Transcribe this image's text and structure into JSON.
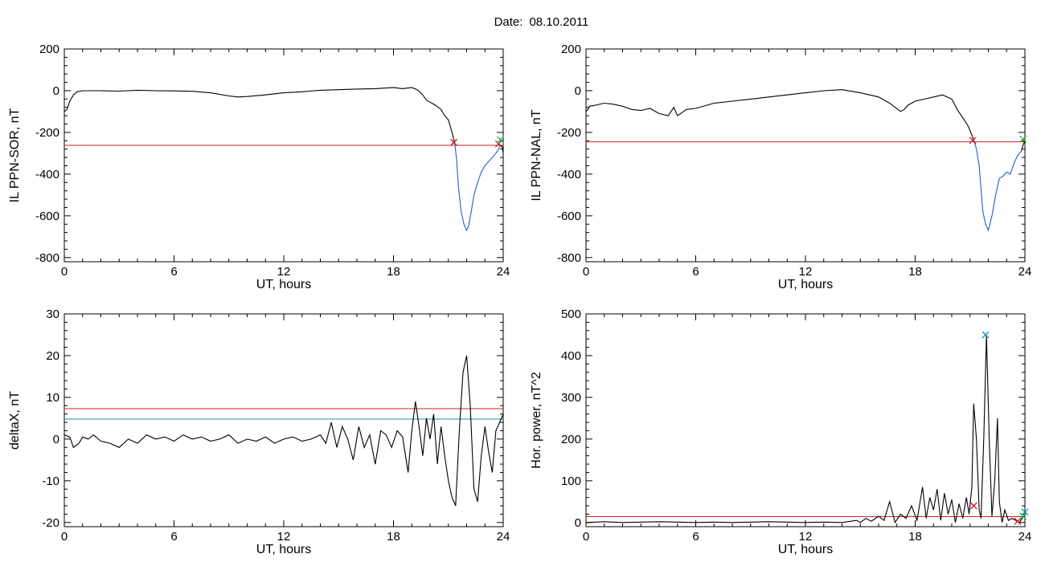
{
  "figure": {
    "date_label": "Date:",
    "date_value": "08.10.2011"
  },
  "chart_data": [
    {
      "id": "p1",
      "type": "line",
      "ylabel": "IL PPN-SOR, nT",
      "xlabel": "UT, hours",
      "xlim": [
        0,
        24
      ],
      "ylim": [
        -820,
        200
      ],
      "xticks": [
        0,
        6,
        12,
        18,
        24
      ],
      "yticks": [
        -800,
        -600,
        -400,
        -200,
        0,
        200
      ],
      "series": [
        {
          "color": "#000000",
          "x": [
            0,
            0.15,
            0.3,
            0.5,
            0.7,
            1.0,
            2,
            3,
            4,
            5,
            6,
            7,
            8,
            9,
            9.5,
            10,
            11,
            12,
            13,
            14,
            15,
            16,
            17,
            18,
            18.5,
            19,
            19.3,
            19.6,
            19.8,
            20.0,
            20.3,
            20.6,
            20.8,
            21.0,
            21.2,
            21.35
          ],
          "y": [
            -100,
            -90,
            -50,
            -20,
            -5,
            0,
            0,
            -2,
            2,
            0,
            -1,
            -3,
            -10,
            -25,
            -30,
            -28,
            -20,
            -10,
            -5,
            2,
            5,
            8,
            10,
            15,
            10,
            15,
            5,
            -20,
            -45,
            -55,
            -70,
            -90,
            -120,
            -140,
            -200,
            -250
          ]
        },
        {
          "color": "#1a5fd6",
          "x": [
            21.35,
            21.45,
            21.55,
            21.7,
            21.85,
            22.0,
            22.1,
            22.25,
            22.4,
            22.6,
            22.8,
            23.0,
            23.2,
            23.4,
            23.6,
            23.75,
            23.85
          ],
          "y": [
            -250,
            -330,
            -460,
            -580,
            -640,
            -670,
            -650,
            -580,
            -500,
            -440,
            -390,
            -360,
            -340,
            -320,
            -300,
            -280,
            -260
          ]
        },
        {
          "color": "#000000",
          "x": [
            23.85,
            23.95,
            24.0
          ],
          "y": [
            -260,
            -270,
            -300
          ]
        }
      ],
      "hlines": [
        {
          "y": -262,
          "color": "#d42020"
        }
      ],
      "markers": [
        {
          "x": 21.3,
          "y": -248,
          "color": "#c81818"
        },
        {
          "x": 23.75,
          "y": -255,
          "color": "#c81818"
        },
        {
          "x": 23.85,
          "y": -235,
          "color": "#2db04d"
        }
      ]
    },
    {
      "id": "p2",
      "type": "line",
      "ylabel": "IL PPN-NAL, nT",
      "xlabel": "UT, hours",
      "xlim": [
        0,
        24
      ],
      "ylim": [
        -820,
        200
      ],
      "xticks": [
        0,
        6,
        12,
        18,
        24
      ],
      "yticks": [
        -800,
        -600,
        -400,
        -200,
        0,
        200
      ],
      "series": [
        {
          "color": "#000000",
          "x": [
            0,
            0.1,
            0.2,
            0.5,
            1,
            1.5,
            2,
            2.5,
            3,
            3.5,
            4,
            4.5,
            4.8,
            5,
            5.5,
            6,
            7,
            8,
            9,
            10,
            11,
            12,
            13,
            14,
            15,
            16,
            16.6,
            16.9,
            17.2,
            17.4,
            17.6,
            18,
            18.5,
            19,
            19.5,
            20,
            20.3,
            20.6,
            20.9,
            21.2
          ],
          "y": [
            -100,
            -90,
            -75,
            -70,
            -60,
            -65,
            -75,
            -90,
            -95,
            -85,
            -110,
            -120,
            -80,
            -120,
            -90,
            -85,
            -60,
            -50,
            -40,
            -30,
            -20,
            -10,
            0,
            5,
            -10,
            -30,
            -60,
            -80,
            -100,
            -90,
            -70,
            -50,
            -40,
            -30,
            -20,
            -40,
            -90,
            -130,
            -170,
            -235
          ]
        },
        {
          "color": "#1a5fd6",
          "x": [
            21.2,
            21.35,
            21.5,
            21.6,
            21.7,
            21.85,
            22.0,
            22.2,
            22.4,
            22.6,
            22.8,
            23.0,
            23.2,
            23.4,
            23.6,
            23.8
          ],
          "y": [
            -235,
            -280,
            -360,
            -470,
            -580,
            -640,
            -670,
            -600,
            -500,
            -420,
            -410,
            -390,
            -400,
            -350,
            -310,
            -290
          ]
        },
        {
          "color": "#000000",
          "x": [
            23.8,
            23.9,
            24.0
          ],
          "y": [
            -290,
            -260,
            -240
          ]
        }
      ],
      "hlines": [
        {
          "y": -245,
          "color": "#d42020"
        }
      ],
      "markers": [
        {
          "x": 21.15,
          "y": -238,
          "color": "#c81818"
        },
        {
          "x": 23.9,
          "y": -232,
          "color": "#2db04d"
        }
      ]
    },
    {
      "id": "p3",
      "type": "line",
      "ylabel": "deltaX, nT",
      "xlabel": "UT, hours",
      "xlim": [
        0,
        24
      ],
      "ylim": [
        -21,
        30
      ],
      "xticks": [
        0,
        6,
        12,
        18,
        24
      ],
      "yticks": [
        -20,
        -10,
        0,
        10,
        20,
        30
      ],
      "series": [
        {
          "color": "#000000",
          "x": [
            0,
            0.3,
            0.5,
            0.8,
            1.0,
            1.3,
            1.6,
            2,
            2.5,
            3,
            3.5,
            4,
            4.5,
            5,
            5.5,
            6,
            6.5,
            7,
            7.5,
            8,
            8.5,
            9,
            9.5,
            10,
            10.5,
            11,
            11.5,
            12,
            12.5,
            13,
            13.5,
            14,
            14.3,
            14.6,
            14.9,
            15.2,
            15.5,
            15.8,
            16.1,
            16.4,
            16.7,
            17.0,
            17.3,
            17.6,
            17.9,
            18.2,
            18.5,
            18.8,
            19.0,
            19.2,
            19.4,
            19.6,
            19.8,
            20.0,
            20.2,
            20.4,
            20.6,
            20.8,
            21.0,
            21.2,
            21.4,
            21.6,
            21.8,
            22.0,
            22.2,
            22.4,
            22.6,
            22.8,
            23.0,
            23.2,
            23.4,
            23.6,
            23.8,
            24.0
          ],
          "y": [
            1,
            0.5,
            -2,
            -1,
            0.5,
            0,
            1,
            -0.5,
            -1,
            -2,
            0,
            -1,
            1,
            0,
            0.5,
            -0.5,
            1,
            0,
            0.5,
            -0.5,
            0,
            1,
            -1,
            0,
            -0.5,
            0.5,
            -1,
            0,
            0.5,
            -0.5,
            0,
            1,
            -1,
            4,
            -2,
            3,
            0,
            -5,
            3,
            -2,
            1,
            -6,
            2,
            1,
            -2,
            2,
            0.5,
            -8,
            2,
            9,
            3,
            -4,
            5,
            0,
            6,
            -6,
            3,
            -4,
            -10,
            -14,
            -16,
            2,
            16,
            20,
            8,
            -12,
            -15,
            -4,
            3,
            -3,
            -8,
            2,
            4,
            6
          ]
        }
      ],
      "hlines": [
        {
          "y": 7.3,
          "color": "#d42020"
        },
        {
          "y": 4.8,
          "color": "#1a8fa8"
        }
      ],
      "markers": []
    },
    {
      "id": "p4",
      "type": "line",
      "ylabel": "Hor. power, nT^2",
      "xlabel": "UT, hours",
      "xlim": [
        0,
        24
      ],
      "ylim": [
        -10,
        500
      ],
      "xticks": [
        0,
        6,
        12,
        18,
        24
      ],
      "yticks": [
        0,
        100,
        200,
        300,
        400,
        500
      ],
      "series": [
        {
          "color": "#000000",
          "x": [
            0,
            0.5,
            1,
            1.5,
            2,
            3,
            4,
            5,
            6,
            7,
            8,
            9,
            10,
            11,
            12,
            13,
            14,
            14.8,
            15.0,
            15.3,
            15.6,
            16.0,
            16.3,
            16.6,
            16.9,
            17.2,
            17.5,
            17.8,
            18.1,
            18.4,
            18.6,
            18.8,
            19.0,
            19.2,
            19.4,
            19.6,
            19.8,
            20.0,
            20.2,
            20.4,
            20.6,
            20.8,
            20.95,
            21.1,
            21.2,
            21.35,
            21.5,
            21.6,
            21.75,
            21.9,
            22.05,
            22.2,
            22.35,
            22.5,
            22.6,
            22.75,
            22.9,
            23.1,
            23.3,
            23.5,
            23.7,
            23.85,
            24.0
          ],
          "y": [
            0,
            1,
            2,
            1,
            0,
            1,
            2,
            1,
            0,
            1,
            0,
            1,
            2,
            1,
            0,
            1,
            0,
            5,
            0,
            10,
            3,
            15,
            5,
            50,
            0,
            20,
            10,
            40,
            5,
            85,
            10,
            60,
            30,
            80,
            5,
            70,
            20,
            55,
            0,
            45,
            10,
            60,
            20,
            85,
            285,
            200,
            30,
            10,
            200,
            450,
            200,
            15,
            100,
            250,
            50,
            0,
            30,
            5,
            10,
            5,
            0,
            10,
            20
          ]
        }
      ],
      "hlines": [
        {
          "y": 14,
          "color": "#d42020"
        }
      ],
      "markers": [
        {
          "x": 21.85,
          "y": 450,
          "color": "#1a8fa8"
        },
        {
          "x": 21.2,
          "y": 40,
          "color": "#c81818"
        },
        {
          "x": 23.6,
          "y": 3,
          "color": "#c81818"
        },
        {
          "x": 23.9,
          "y": 15,
          "color": "#2db04d"
        },
        {
          "x": 24.0,
          "y": 25,
          "color": "#1a8fa8"
        }
      ]
    }
  ]
}
